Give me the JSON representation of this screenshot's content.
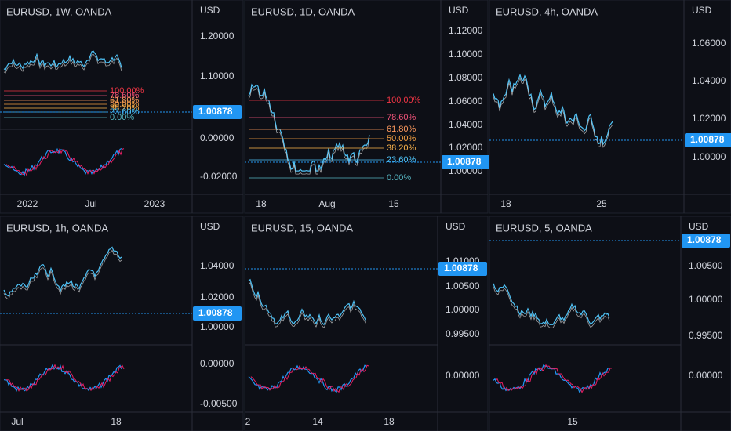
{
  "panels": [
    {
      "title": "EURUSD, 1W, OANDA",
      "currency": "USD",
      "price_ticks": [
        "1.20000",
        "1.10000"
      ],
      "osc_ticks": [
        "0.00000",
        "-0.02000"
      ],
      "badge": "1.00878",
      "times": [
        "2022",
        "Jul",
        "2023"
      ],
      "fib": [
        "100.00%",
        "78.60%",
        "61.80%",
        "50.00%",
        "38.20%",
        "23.60%",
        "0.00%"
      ]
    },
    {
      "title": "EURUSD, 1D, OANDA",
      "currency": "USD",
      "price_ticks": [
        "1.12000",
        "1.10000",
        "1.08000",
        "1.06000",
        "1.04000",
        "1.02000",
        "1.00000"
      ],
      "osc_ticks": [],
      "badge": "1.00878",
      "times": [
        "18",
        "Aug",
        "15"
      ],
      "fib": [
        "100.00%",
        "78.60%",
        "61.80%",
        "50.00%",
        "38.20%",
        "23.60%",
        "0.00%"
      ]
    },
    {
      "title": "EURUSD, 4h, OANDA",
      "currency": "USD",
      "price_ticks": [
        "1.06000",
        "1.04000",
        "1.02000",
        "1.00000"
      ],
      "osc_ticks": [],
      "badge": "1.00878",
      "times": [
        "18",
        "25"
      ],
      "fib": []
    },
    {
      "title": "EURUSD, 1h, OANDA",
      "currency": "USD",
      "price_ticks": [
        "1.04000",
        "1.02000",
        "1.00000"
      ],
      "osc_ticks": [
        "0.00000",
        "-0.00500"
      ],
      "badge": "1.00878",
      "times": [
        "Jul",
        "18"
      ],
      "fib": []
    },
    {
      "title": "EURUSD, 15, OANDA",
      "currency": "USD",
      "price_ticks": [
        "1.01000",
        "1.00500",
        "1.00000",
        "0.99500"
      ],
      "osc_ticks": [
        "0.00000"
      ],
      "badge": "1.00878",
      "times": [
        "2",
        "14",
        "18"
      ],
      "fib": []
    },
    {
      "title": "EURUSD, 5, OANDA",
      "currency": "USD",
      "price_ticks": [
        "1.00500",
        "1.00000",
        "0.99500"
      ],
      "osc_ticks": [
        "0.00000"
      ],
      "badge": "1.00878",
      "times": [
        "15"
      ],
      "fib": []
    }
  ]
}
